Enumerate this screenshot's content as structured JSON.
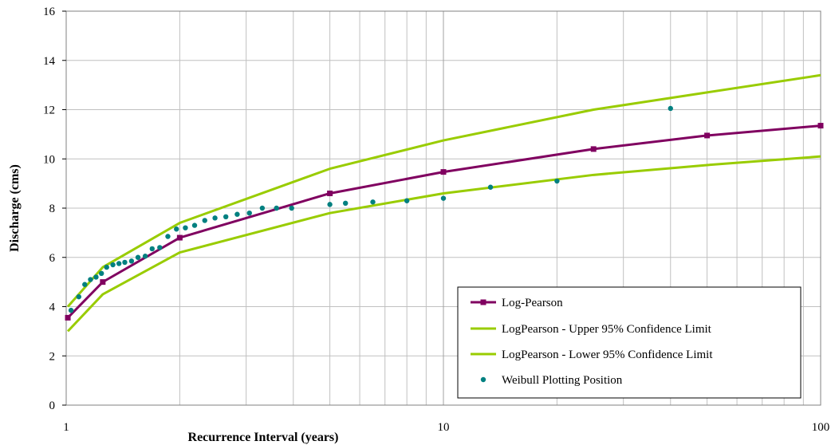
{
  "chart_data": {
    "type": "line",
    "xscale": "log",
    "xlim": [
      1,
      100
    ],
    "ylim": [
      0,
      16
    ],
    "xlabel": "Recurrence Interval (years)",
    "ylabel": "Discharge (cms)",
    "xticks": [
      "1",
      "10",
      "100"
    ],
    "yticks": [
      "0",
      "2",
      "4",
      "6",
      "8",
      "10",
      "12",
      "14",
      "16"
    ],
    "grid": true,
    "legend_position": "bottom-right",
    "colors": {
      "log_pearson": "#800060",
      "confidence": "#99CC00",
      "weibull": "#008080",
      "grid": "#c0c0c0"
    },
    "series": [
      {
        "name": "Log-Pearson",
        "style": "line-markers",
        "x": [
          1.01,
          1.25,
          2,
          5,
          10,
          25,
          50,
          100
        ],
        "y": [
          3.55,
          5.0,
          6.8,
          8.6,
          9.47,
          10.4,
          10.95,
          11.35
        ]
      },
      {
        "name": "LogPearson - Upper 95% Confidence Limit",
        "style": "line",
        "x": [
          1.01,
          1.25,
          2,
          5,
          10,
          25,
          50,
          100
        ],
        "y": [
          4.0,
          5.6,
          7.4,
          9.6,
          10.75,
          12.0,
          12.7,
          13.4
        ]
      },
      {
        "name": "LogPearson - Lower 95% Confidence Limit",
        "style": "line",
        "x": [
          1.01,
          1.25,
          2,
          5,
          10,
          25,
          50,
          100
        ],
        "y": [
          3.0,
          4.5,
          6.2,
          7.8,
          8.6,
          9.35,
          9.75,
          10.1
        ]
      },
      {
        "name": "Weibull Plotting Position",
        "style": "markers",
        "x": [
          1.03,
          1.08,
          1.12,
          1.16,
          1.2,
          1.24,
          1.28,
          1.33,
          1.38,
          1.43,
          1.49,
          1.55,
          1.62,
          1.69,
          1.77,
          1.86,
          1.96,
          2.07,
          2.19,
          2.33,
          2.48,
          2.65,
          2.84,
          3.06,
          3.31,
          3.61,
          3.96,
          5.0,
          5.5,
          6.5,
          8.0,
          10.0,
          13.33,
          20.0,
          40.0
        ],
        "y": [
          3.85,
          4.4,
          4.9,
          5.1,
          5.2,
          5.35,
          5.6,
          5.7,
          5.75,
          5.8,
          5.85,
          6.0,
          6.05,
          6.35,
          6.4,
          6.85,
          7.15,
          7.2,
          7.3,
          7.5,
          7.6,
          7.65,
          7.75,
          7.8,
          8.0,
          8.0,
          8.0,
          8.15,
          8.2,
          8.25,
          8.3,
          8.4,
          8.85,
          9.1,
          12.05
        ]
      }
    ]
  }
}
